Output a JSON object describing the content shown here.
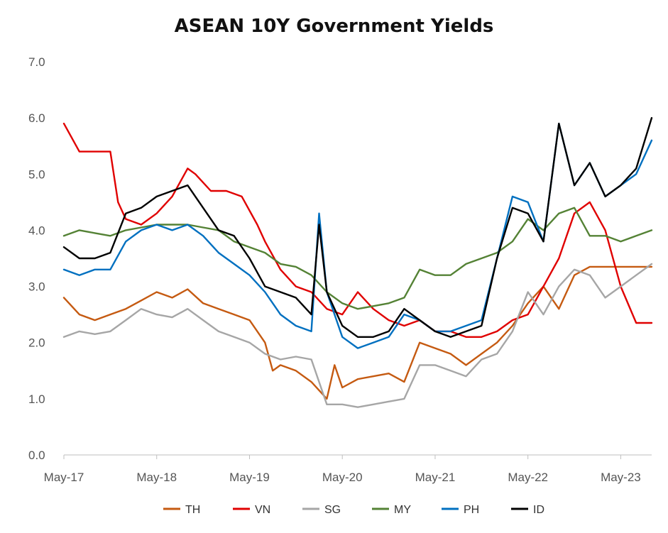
{
  "chart_data": {
    "type": "line",
    "title": "ASEAN 10Y Government Yields",
    "xlabel": "",
    "ylabel": "",
    "ylim": [
      0,
      7
    ],
    "yticks": [
      "0.0",
      "1.0",
      "2.0",
      "3.0",
      "4.0",
      "5.0",
      "6.0",
      "7.0"
    ],
    "xticks": [
      "May-17",
      "May-18",
      "May-19",
      "May-20",
      "May-21",
      "May-22",
      "May-23"
    ],
    "xlim": [
      "2017-05",
      "2023-09"
    ],
    "grid": false,
    "legend": "bottom",
    "series": [
      {
        "name": "TH",
        "color": "#C55A11",
        "x": [
          "2017-05",
          "2017-07",
          "2017-09",
          "2017-11",
          "2018-01",
          "2018-03",
          "2018-05",
          "2018-07",
          "2018-09",
          "2018-11",
          "2019-01",
          "2019-03",
          "2019-05",
          "2019-07",
          "2019-08",
          "2019-09",
          "2019-11",
          "2020-01",
          "2020-03",
          "2020-04",
          "2020-05",
          "2020-07",
          "2020-09",
          "2020-11",
          "2021-01",
          "2021-03",
          "2021-05",
          "2021-07",
          "2021-09",
          "2021-11",
          "2022-01",
          "2022-03",
          "2022-05",
          "2022-07",
          "2022-09",
          "2022-11",
          "2023-01",
          "2023-03",
          "2023-05",
          "2023-07",
          "2023-09"
        ],
        "values": [
          2.8,
          2.5,
          2.4,
          2.5,
          2.6,
          2.75,
          2.9,
          2.8,
          2.95,
          2.7,
          2.6,
          2.5,
          2.4,
          2.0,
          1.5,
          1.6,
          1.5,
          1.3,
          1.0,
          1.6,
          1.2,
          1.35,
          1.4,
          1.45,
          1.3,
          2.0,
          1.9,
          1.8,
          1.6,
          1.8,
          2.0,
          2.3,
          2.7,
          3.0,
          2.6,
          3.2,
          3.35,
          3.35,
          3.35,
          3.35,
          3.35
        ]
      },
      {
        "name": "VN",
        "color": "#E00000",
        "x": [
          "2017-05",
          "2017-07",
          "2017-09",
          "2017-11",
          "2017-12",
          "2018-01",
          "2018-03",
          "2018-05",
          "2018-07",
          "2018-09",
          "2018-10",
          "2018-12",
          "2019-02",
          "2019-04",
          "2019-06",
          "2019-07",
          "2019-09",
          "2019-11",
          "2020-01",
          "2020-03",
          "2020-05",
          "2020-07",
          "2020-09",
          "2020-11",
          "2021-01",
          "2021-03",
          "2021-05",
          "2021-07",
          "2021-09",
          "2021-11",
          "2022-01",
          "2022-03",
          "2022-05",
          "2022-07",
          "2022-09",
          "2022-11",
          "2023-01",
          "2023-03",
          "2023-05",
          "2023-07",
          "2023-09"
        ],
        "values": [
          5.9,
          5.4,
          5.4,
          5.4,
          4.5,
          4.2,
          4.1,
          4.3,
          4.6,
          5.1,
          5.0,
          4.7,
          4.7,
          4.6,
          4.1,
          3.8,
          3.3,
          3.0,
          2.9,
          2.6,
          2.5,
          2.9,
          2.6,
          2.4,
          2.3,
          2.4,
          2.2,
          2.2,
          2.1,
          2.1,
          2.2,
          2.4,
          2.5,
          3.0,
          3.5,
          4.3,
          4.5,
          4.0,
          3.0,
          2.35,
          2.35
        ]
      },
      {
        "name": "SG",
        "color": "#A6A6A6",
        "x": [
          "2017-05",
          "2017-07",
          "2017-09",
          "2017-11",
          "2018-01",
          "2018-03",
          "2018-05",
          "2018-07",
          "2018-09",
          "2018-11",
          "2019-01",
          "2019-03",
          "2019-05",
          "2019-07",
          "2019-09",
          "2019-11",
          "2020-01",
          "2020-03",
          "2020-05",
          "2020-07",
          "2020-09",
          "2020-11",
          "2021-01",
          "2021-03",
          "2021-05",
          "2021-07",
          "2021-09",
          "2021-11",
          "2022-01",
          "2022-03",
          "2022-05",
          "2022-07",
          "2022-09",
          "2022-11",
          "2023-01",
          "2023-03",
          "2023-05",
          "2023-07",
          "2023-09"
        ],
        "values": [
          2.1,
          2.2,
          2.15,
          2.2,
          2.4,
          2.6,
          2.5,
          2.45,
          2.6,
          2.4,
          2.2,
          2.1,
          2.0,
          1.8,
          1.7,
          1.75,
          1.7,
          0.9,
          0.9,
          0.85,
          0.9,
          0.95,
          1.0,
          1.6,
          1.6,
          1.5,
          1.4,
          1.7,
          1.8,
          2.2,
          2.9,
          2.5,
          3.0,
          3.3,
          3.2,
          2.8,
          3.0,
          3.2,
          3.4
        ]
      },
      {
        "name": "MY",
        "color": "#548235",
        "x": [
          "2017-05",
          "2017-07",
          "2017-09",
          "2017-11",
          "2018-01",
          "2018-03",
          "2018-05",
          "2018-07",
          "2018-09",
          "2018-11",
          "2019-01",
          "2019-03",
          "2019-05",
          "2019-07",
          "2019-09",
          "2019-11",
          "2020-01",
          "2020-03",
          "2020-05",
          "2020-07",
          "2020-09",
          "2020-11",
          "2021-01",
          "2021-03",
          "2021-05",
          "2021-07",
          "2021-09",
          "2021-11",
          "2022-01",
          "2022-03",
          "2022-05",
          "2022-07",
          "2022-09",
          "2022-11",
          "2023-01",
          "2023-03",
          "2023-05",
          "2023-07",
          "2023-09"
        ],
        "values": [
          3.9,
          4.0,
          3.95,
          3.9,
          4.0,
          4.05,
          4.1,
          4.1,
          4.1,
          4.05,
          4.0,
          3.8,
          3.7,
          3.6,
          3.4,
          3.35,
          3.2,
          2.9,
          2.7,
          2.6,
          2.65,
          2.7,
          2.8,
          3.3,
          3.2,
          3.2,
          3.4,
          3.5,
          3.6,
          3.8,
          4.2,
          4.0,
          4.3,
          4.4,
          3.9,
          3.9,
          3.8,
          3.9,
          4.0
        ]
      },
      {
        "name": "PH",
        "color": "#0070C0",
        "x": [
          "2017-05",
          "2017-07",
          "2017-09",
          "2017-11",
          "2018-01",
          "2018-03",
          "2018-05",
          "2018-07",
          "2018-09",
          "2018-11",
          "2019-01",
          "2019-03",
          "2019-05",
          "2019-07",
          "2019-09",
          "2019-11",
          "2020-01",
          "2020-02",
          "2020-03",
          "2020-05",
          "2020-07",
          "2020-09",
          "2020-11",
          "2021-01",
          "2021-03",
          "2021-05",
          "2021-07",
          "2021-09",
          "2021-11",
          "2022-01",
          "2022-03",
          "2022-05",
          "2022-07",
          "2022-09",
          "2022-11",
          "2023-01",
          "2023-03",
          "2023-05",
          "2023-07",
          "2023-09"
        ],
        "values": [
          3.3,
          3.2,
          3.3,
          3.3,
          3.8,
          4.0,
          4.1,
          4.0,
          4.1,
          3.9,
          3.6,
          3.4,
          3.2,
          2.9,
          2.5,
          2.3,
          2.2,
          4.3,
          2.9,
          2.1,
          1.9,
          2.0,
          2.1,
          2.5,
          2.4,
          2.2,
          2.2,
          2.3,
          2.4,
          3.5,
          4.6,
          4.5,
          3.8,
          5.9,
          4.8,
          5.2,
          4.6,
          4.8,
          5.0,
          5.6
        ]
      },
      {
        "name": "ID",
        "color": "#000000",
        "x": [
          "2017-05",
          "2017-07",
          "2017-09",
          "2017-11",
          "2018-01",
          "2018-03",
          "2018-05",
          "2018-07",
          "2018-09",
          "2018-11",
          "2019-01",
          "2019-03",
          "2019-05",
          "2019-07",
          "2019-09",
          "2019-11",
          "2020-01",
          "2020-02",
          "2020-03",
          "2020-05",
          "2020-07",
          "2020-09",
          "2020-11",
          "2021-01",
          "2021-03",
          "2021-05",
          "2021-07",
          "2021-09",
          "2021-11",
          "2022-01",
          "2022-03",
          "2022-05",
          "2022-07",
          "2022-09",
          "2022-11",
          "2023-01",
          "2023-03",
          "2023-05",
          "2023-07",
          "2023-09"
        ],
        "values": [
          3.7,
          3.5,
          3.5,
          3.6,
          4.3,
          4.4,
          4.6,
          4.7,
          4.8,
          4.4,
          4.0,
          3.9,
          3.5,
          3.0,
          2.9,
          2.8,
          2.5,
          4.1,
          2.9,
          2.3,
          2.1,
          2.1,
          2.2,
          2.6,
          2.4,
          2.2,
          2.1,
          2.2,
          2.3,
          3.5,
          4.4,
          4.3,
          3.8,
          5.9,
          4.8,
          5.2,
          4.6,
          4.8,
          5.1,
          6.0
        ]
      }
    ]
  }
}
